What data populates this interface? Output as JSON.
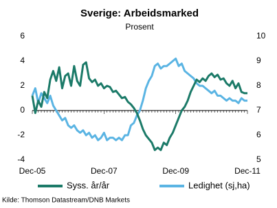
{
  "chart_data": {
    "type": "line",
    "title": "Sverige: Arbeidsmarked",
    "subtitle": "Prosent",
    "source": "Kilde: Thomson Datastream/DNB Markets",
    "categories": [
      "Dec-05",
      null,
      null,
      null,
      null,
      null,
      null,
      null,
      null,
      null,
      null,
      null,
      null,
      null,
      null,
      null,
      null,
      null,
      null,
      null,
      null,
      null,
      null,
      null,
      "Dec-07",
      null,
      null,
      null,
      null,
      null,
      null,
      null,
      null,
      null,
      null,
      null,
      null,
      null,
      null,
      null,
      null,
      null,
      null,
      null,
      null,
      null,
      null,
      null,
      "Dec-09",
      null,
      null,
      null,
      null,
      null,
      null,
      null,
      null,
      null,
      null,
      null,
      null,
      null,
      null,
      null,
      null,
      null,
      null,
      null,
      null,
      null,
      null,
      null,
      "Dec-11"
    ],
    "ylim": [
      -4,
      6
    ],
    "yticks": [
      -4,
      -2,
      0,
      2,
      4,
      6
    ],
    "y2lim": [
      5,
      10
    ],
    "y2ticks": [
      5,
      6,
      7,
      8,
      9,
      10
    ],
    "series": [
      {
        "name": "Syss. år/år",
        "color": "#1b7a68",
        "values": [
          1.2,
          -0.2,
          0.8,
          0.3,
          1.5,
          1.0,
          2.5,
          3.2,
          2.4,
          3.5,
          1.8,
          2.8,
          3.0,
          2.0,
          3.6,
          2.4,
          2.0,
          3.7,
          3.9,
          2.6,
          2.3,
          2.5,
          2.0,
          2.2,
          1.8,
          2.0,
          1.9,
          1.5,
          1.6,
          1.3,
          1.0,
          1.1,
          0.7,
          0.5,
          0.2,
          -0.2,
          -0.8,
          -1.5,
          -2.0,
          -2.3,
          -2.6,
          -3.2,
          -3.0,
          -3.2,
          -2.6,
          -2.8,
          -2.2,
          -1.8,
          -1.2,
          -0.6,
          0.0,
          0.3,
          0.8,
          1.5,
          2.0,
          2.5,
          2.3,
          2.6,
          2.4,
          2.8,
          3.0,
          2.7,
          2.9,
          2.5,
          2.6,
          2.2,
          2.0,
          2.4,
          1.8,
          2.2,
          1.5,
          1.4,
          1.4
        ]
      },
      {
        "name": "Ledighet (sj,ha)",
        "color": "#5ab4e3",
        "axis": "y2",
        "values": [
          7.6,
          7.9,
          7.3,
          7.7,
          7.5,
          7.3,
          7.6,
          7.2,
          7.0,
          6.8,
          6.6,
          6.7,
          6.4,
          6.3,
          6.4,
          6.2,
          6.1,
          6.2,
          6.0,
          6.1,
          5.9,
          6.0,
          5.8,
          5.9,
          6.1,
          5.8,
          5.9,
          5.9,
          5.8,
          5.9,
          5.8,
          6.0,
          6.0,
          6.4,
          6.5,
          6.8,
          7.0,
          7.4,
          7.9,
          8.2,
          8.4,
          8.8,
          8.9,
          8.7,
          8.8,
          8.8,
          8.9,
          9.0,
          9.1,
          8.8,
          8.9,
          8.6,
          8.5,
          8.4,
          8.3,
          8.1,
          8.0,
          8.0,
          7.9,
          7.8,
          7.7,
          7.8,
          7.6,
          7.6,
          7.5,
          7.4,
          7.5,
          7.4,
          7.4,
          7.3,
          7.5,
          7.4,
          7.4
        ]
      }
    ]
  }
}
